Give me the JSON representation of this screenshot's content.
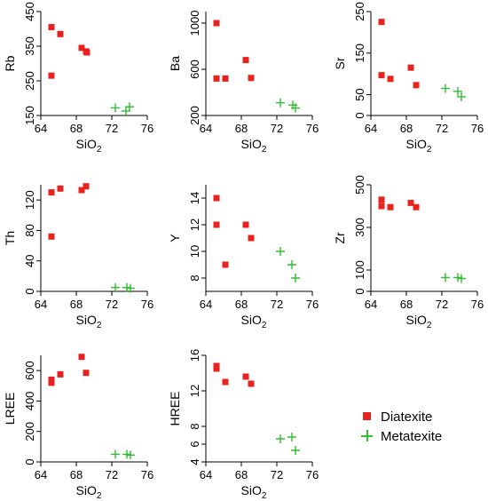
{
  "colors": {
    "diatexite": "#e8231e",
    "metatexite": "#2fbf2f"
  },
  "legend": {
    "diatexite_label": "Diatexite",
    "metatexite_label": "Metatexite"
  },
  "chart_data": [
    {
      "type": "scatter",
      "ylabel": "Rb",
      "xlabel": "SiO2",
      "xlim": [
        64,
        76
      ],
      "ylim": [
        150,
        450
      ],
      "xticks": [
        64,
        68,
        72,
        76
      ],
      "yticks": [
        150,
        250,
        350,
        450
      ],
      "series": [
        {
          "name": "Diatexite",
          "marker": "square",
          "x": [
            65.2,
            65.2,
            66.2,
            68.6,
            69.1,
            69.2
          ],
          "y": [
            405,
            265,
            385,
            345,
            335,
            332
          ]
        },
        {
          "name": "Metatexite",
          "marker": "plus",
          "x": [
            72.4,
            73.6,
            74.0
          ],
          "y": [
            172,
            163,
            175
          ]
        }
      ]
    },
    {
      "type": "scatter",
      "ylabel": "Ba",
      "xlabel": "SiO2",
      "xlim": [
        64,
        76
      ],
      "ylim": [
        200,
        1100
      ],
      "xticks": [
        64,
        68,
        72,
        76
      ],
      "yticks": [
        200,
        600,
        1000
      ],
      "series": [
        {
          "name": "Diatexite",
          "marker": "square",
          "x": [
            65.2,
            65.2,
            66.2,
            68.5,
            69.1
          ],
          "y": [
            1000,
            520,
            520,
            680,
            525
          ]
        },
        {
          "name": "Metatexite",
          "marker": "plus",
          "x": [
            72.4,
            73.8,
            74.1
          ],
          "y": [
            310,
            290,
            265
          ]
        }
      ]
    },
    {
      "type": "scatter",
      "ylabel": "Sr",
      "xlabel": "SiO2",
      "xlim": [
        64,
        76
      ],
      "ylim": [
        0,
        250
      ],
      "xticks": [
        64,
        68,
        72,
        76
      ],
      "yticks": [
        0,
        50,
        150,
        250
      ],
      "series": [
        {
          "name": "Diatexite",
          "marker": "square",
          "x": [
            65.2,
            65.2,
            66.2,
            68.5,
            69.1
          ],
          "y": [
            225,
            97,
            88,
            115,
            73
          ]
        },
        {
          "name": "Metatexite",
          "marker": "plus",
          "x": [
            72.4,
            73.8,
            74.2
          ],
          "y": [
            65,
            58,
            45
          ]
        }
      ]
    },
    {
      "type": "scatter",
      "ylabel": "Th",
      "xlabel": "SiO2",
      "xlim": [
        64,
        76
      ],
      "ylim": [
        0,
        140
      ],
      "xticks": [
        64,
        68,
        72,
        76
      ],
      "yticks": [
        0,
        40,
        80,
        120
      ],
      "series": [
        {
          "name": "Diatexite",
          "marker": "square",
          "x": [
            65.2,
            65.2,
            66.2,
            68.6,
            69.1
          ],
          "y": [
            130,
            72,
            135,
            133,
            138
          ]
        },
        {
          "name": "Metatexite",
          "marker": "plus",
          "x": [
            72.4,
            73.7,
            74.1
          ],
          "y": [
            5,
            5,
            4
          ]
        }
      ]
    },
    {
      "type": "scatter",
      "ylabel": "Y",
      "xlabel": "SiO2",
      "xlim": [
        64,
        76
      ],
      "ylim": [
        7,
        15
      ],
      "xticks": [
        64,
        68,
        72,
        76
      ],
      "yticks": [
        8,
        10,
        12,
        14
      ],
      "series": [
        {
          "name": "Diatexite",
          "marker": "square",
          "x": [
            65.2,
            65.2,
            66.2,
            68.5,
            69.1
          ],
          "y": [
            14,
            12,
            9,
            12,
            11
          ]
        },
        {
          "name": "Metatexite",
          "marker": "plus",
          "x": [
            72.4,
            73.7,
            74.1
          ],
          "y": [
            10,
            9,
            8
          ]
        }
      ]
    },
    {
      "type": "scatter",
      "ylabel": "Zr",
      "xlabel": "SiO2",
      "xlim": [
        64,
        76
      ],
      "ylim": [
        0,
        500
      ],
      "xticks": [
        64,
        68,
        72,
        76
      ],
      "yticks": [
        0,
        100,
        300,
        500
      ],
      "series": [
        {
          "name": "Diatexite",
          "marker": "square",
          "x": [
            65.2,
            65.2,
            66.2,
            68.5,
            69.1
          ],
          "y": [
            430,
            400,
            395,
            415,
            395
          ]
        },
        {
          "name": "Metatexite",
          "marker": "plus",
          "x": [
            72.4,
            73.8,
            74.2
          ],
          "y": [
            65,
            65,
            60
          ]
        }
      ]
    },
    {
      "type": "scatter",
      "ylabel": "LREE",
      "xlabel": "SiO2",
      "xlim": [
        64,
        76
      ],
      "ylim": [
        0,
        700
      ],
      "xticks": [
        64,
        68,
        72,
        76
      ],
      "yticks": [
        0,
        200,
        400,
        600
      ],
      "series": [
        {
          "name": "Diatexite",
          "marker": "square",
          "x": [
            65.2,
            65.2,
            66.2,
            68.6,
            69.1
          ],
          "y": [
            540,
            520,
            575,
            690,
            585
          ]
        },
        {
          "name": "Metatexite",
          "marker": "plus",
          "x": [
            72.4,
            73.7,
            74.1
          ],
          "y": [
            50,
            50,
            45
          ]
        }
      ]
    },
    {
      "type": "scatter",
      "ylabel": "HREE",
      "xlabel": "SiO2",
      "xlim": [
        64,
        76
      ],
      "ylim": [
        4,
        16
      ],
      "xticks": [
        64,
        68,
        72,
        76
      ],
      "yticks": [
        4,
        6,
        8,
        12,
        16
      ],
      "series": [
        {
          "name": "Diatexite",
          "marker": "square",
          "x": [
            65.2,
            65.2,
            66.2,
            68.5,
            69.1
          ],
          "y": [
            14.8,
            14.5,
            13.0,
            13.6,
            12.8
          ]
        },
        {
          "name": "Metatexite",
          "marker": "plus",
          "x": [
            72.4,
            73.7,
            74.1
          ],
          "y": [
            6.6,
            6.8,
            5.3
          ]
        }
      ]
    }
  ]
}
